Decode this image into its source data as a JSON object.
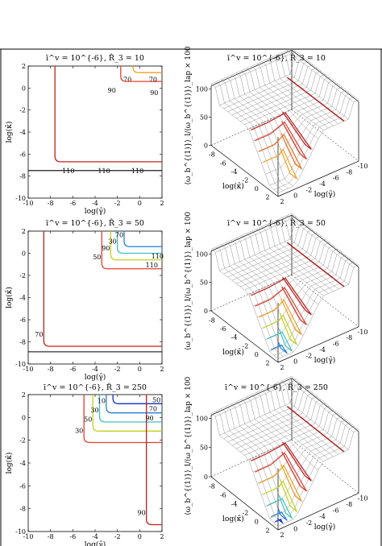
{
  "chart_data": [
    {
      "type": "line",
      "title": "ī^v = 10^{-6}, R̂_3 = 10",
      "xlabel": "log(γ̂)",
      "ylabel": "log(κ̂)",
      "xlim": [
        -10,
        2
      ],
      "ylim": [
        -10,
        2
      ],
      "xticks": [
        "-10",
        "-8",
        "-6",
        "-4",
        "-2",
        "0",
        "2"
      ],
      "yticks": [
        "-10",
        "-8",
        "-6",
        "-4",
        "-2",
        "0",
        "2"
      ],
      "contours": [
        {
          "level": "70",
          "color": "#f0a020",
          "corner": [
            -0.6,
            1.4
          ],
          "label_at": [
            -1.1,
            0.8
          ]
        },
        {
          "level": "90",
          "color": "#e04030",
          "corner": [
            -1.7,
            0.6
          ],
          "label_at": [
            -2.5,
            -0.2
          ]
        },
        {
          "level": "90",
          "color": "#e04030",
          "label_at": [
            1.3,
            -0.4
          ]
        },
        {
          "level": "70",
          "color": "#f0a020",
          "label_at": [
            1.2,
            0.8
          ]
        },
        {
          "level": "90",
          "color": "#c02020",
          "corner": [
            -7.6,
            -6.7
          ]
        },
        {
          "level": "110",
          "color": "#000000",
          "y": -7.5,
          "label_at": [
            -6.4,
            -7.5
          ]
        },
        {
          "level": "110",
          "color": "#000000",
          "label_at": [
            -3.2,
            -7.5
          ]
        },
        {
          "level": "110",
          "color": "#000000",
          "label_at": [
            -0.2,
            -7.5
          ]
        }
      ]
    },
    {
      "type": "surface",
      "title": "ī^v = 10^{-6}, R̂_3 = 10",
      "xlabel": "log(κ̂)",
      "ylabel": "log(γ̂)",
      "zlabel": "⟨ω_b^{(1)}⟩_l/⟨ω_b^{(1)}⟩_lap × 100",
      "xticks": [
        "-8",
        "-6",
        "-4",
        "-2",
        "0",
        "2"
      ],
      "yticks": [
        "2",
        "0",
        "-2",
        "-4",
        "-6",
        "-8",
        "-10"
      ],
      "zticks": [
        "0",
        "50",
        "100"
      ],
      "contour_colors": [
        "#c02020",
        "#e04030",
        "#f07020",
        "#f0a020"
      ]
    },
    {
      "type": "line",
      "title": "ī^v = 10^{-6}, R̂_3 = 50",
      "xlabel": "log(γ̂)",
      "ylabel": "log(κ̂)",
      "xlim": [
        -10,
        2
      ],
      "ylim": [
        -10,
        2
      ],
      "xticks": [
        "-10",
        "-8",
        "-6",
        "-4",
        "-2",
        "0",
        "2"
      ],
      "yticks": [
        "-10",
        "-8",
        "-6",
        "-4",
        "-2",
        "0",
        "2"
      ],
      "contours": [
        {
          "level": "30",
          "color": "#2080e0",
          "corner": [
            -1.4,
            0.6
          ]
        },
        {
          "level": "50",
          "color": "#40c0c0",
          "corner": [
            -2.0,
            0.0
          ]
        },
        {
          "level": "70",
          "color": "#c0d020",
          "corner": [
            -2.6,
            -0.6
          ]
        },
        {
          "level": "90",
          "color": "#e04030",
          "corner": [
            -3.4,
            -1.4
          ]
        },
        {
          "level": "90",
          "color": "#c02020",
          "corner": [
            -8.6,
            -8.4
          ]
        },
        {
          "level": "110",
          "color": "#000000",
          "y": -8.9
        }
      ],
      "labels": [
        "70",
        "30",
        "90",
        "50",
        "70",
        "90",
        "110",
        "110",
        "110"
      ]
    },
    {
      "type": "surface",
      "title": "ī^v = 10^{-6}, R̂_3 = 50",
      "xlabel": "log(κ̂)",
      "ylabel": "log(γ̂)",
      "zlabel": "⟨ω_b^{(1)}⟩_l/⟨ω_b^{(1)}⟩_lap × 100",
      "xticks": [
        "-8",
        "-6",
        "-4",
        "-2",
        "0",
        "2"
      ],
      "yticks": [
        "2",
        "0",
        "-2",
        "-4",
        "-6",
        "-8",
        "-10"
      ],
      "zticks": [
        "0",
        "50",
        "100"
      ],
      "contour_colors": [
        "#c02020",
        "#e04030",
        "#f0a020",
        "#c0d020",
        "#40c0c0",
        "#2080e0"
      ]
    },
    {
      "type": "line",
      "title": "ī^v = 10^{-6}, R̂_3 = 250",
      "xlabel": "log(γ̂)",
      "ylabel": "log(κ̂)",
      "xlim": [
        -10,
        2
      ],
      "ylim": [
        -10,
        2
      ],
      "xticks": [
        "-10",
        "-8",
        "-6",
        "-4",
        "-2",
        "0",
        "2"
      ],
      "yticks": [
        "-10",
        "-8",
        "-6",
        "-4",
        "-2",
        "0",
        "2"
      ],
      "contours": [
        {
          "level": "10",
          "color": "#1030c0",
          "corner": [
            -2.4,
            1.2
          ]
        },
        {
          "level": "30",
          "color": "#2080e0",
          "corner": [
            -3.0,
            0.4
          ]
        },
        {
          "level": "50",
          "color": "#40c0c0",
          "corner": [
            -3.6,
            -0.4
          ]
        },
        {
          "level": "70",
          "color": "#c0d020",
          "corner": [
            -4.2,
            -1.2
          ]
        },
        {
          "level": "90",
          "color": "#e04030",
          "corner": [
            -5.0,
            -2.2
          ]
        },
        {
          "level": "90",
          "color": "#c02020",
          "corner": [
            0.6,
            -9.4
          ]
        }
      ],
      "labels": [
        "90",
        "10",
        "30",
        "50",
        "30",
        "90",
        "50",
        "70",
        "90"
      ]
    },
    {
      "type": "surface",
      "title": "ī^v = 10^{-6}, R̂_3 = 250",
      "xlabel": "log(κ̂)",
      "ylabel": "log(γ̂)",
      "zlabel": "⟨ω_b^{(1)}⟩_l/⟨ω_b^{(1)}⟩_lap × 100",
      "xticks": [
        "-8",
        "-6",
        "-4",
        "-2",
        "0",
        "2"
      ],
      "yticks": [
        "2",
        "0",
        "-2",
        "-4",
        "-6",
        "-8",
        "-10"
      ],
      "zticks": [
        "0",
        "50",
        "100"
      ],
      "contour_colors": [
        "#c02020",
        "#e04030",
        "#f0a020",
        "#c0d020",
        "#40c0c0",
        "#2080e0",
        "#1030c0"
      ]
    }
  ]
}
